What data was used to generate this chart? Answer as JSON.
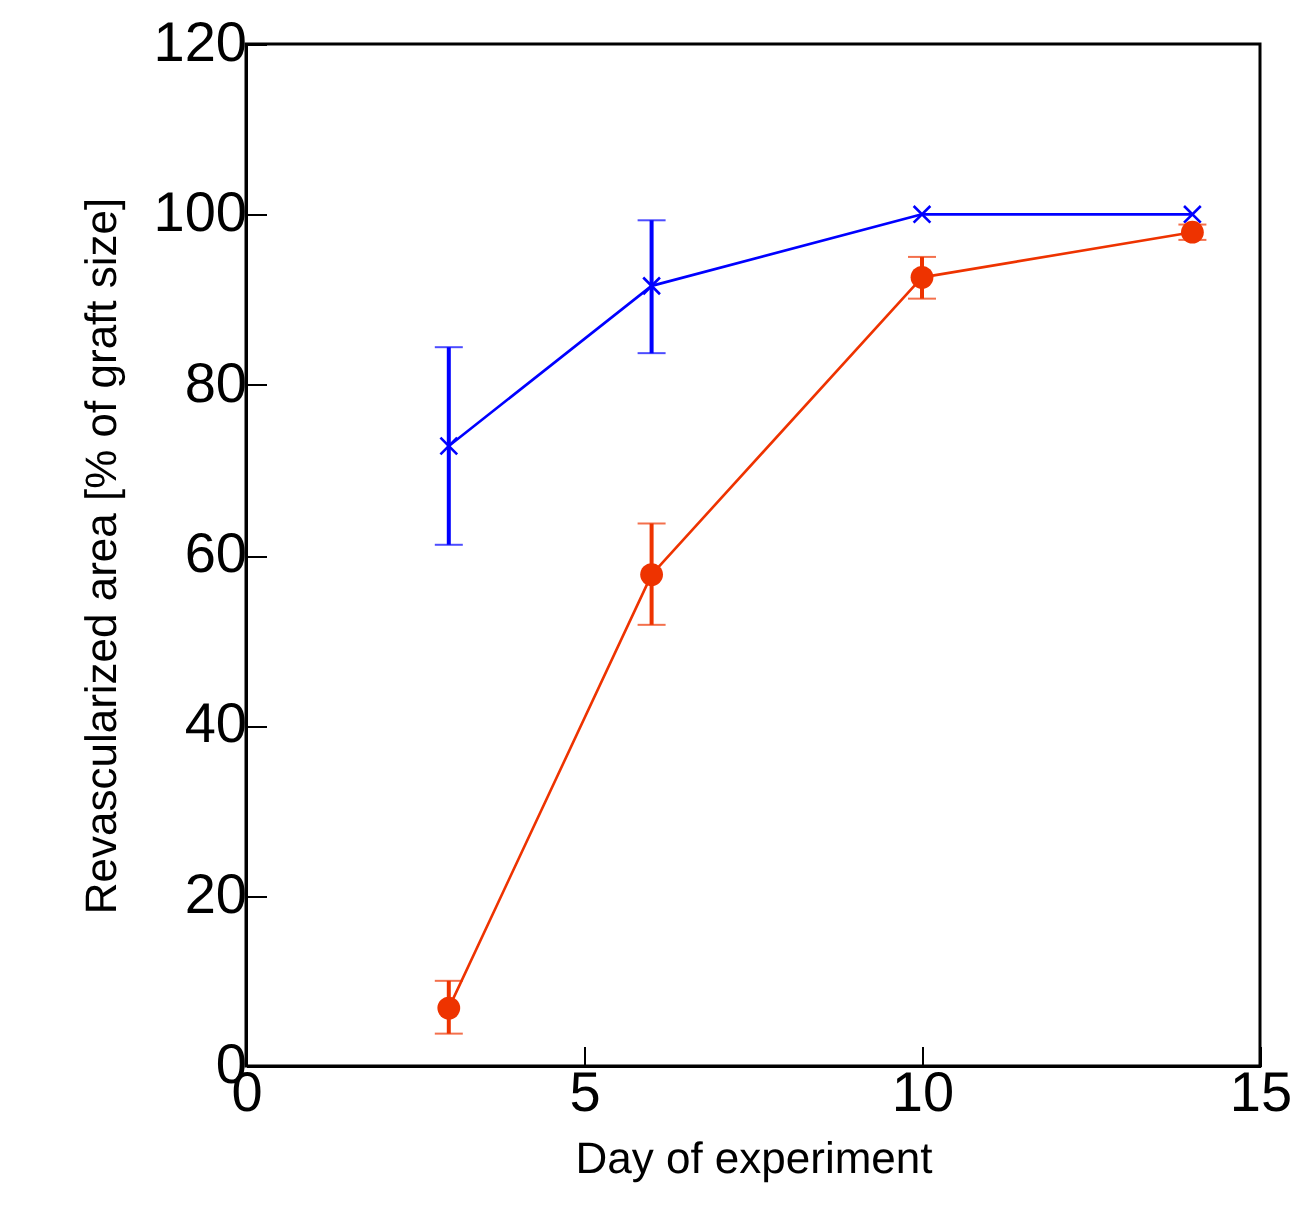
{
  "chart_data": {
    "type": "line",
    "xlabel": "Day of experiment",
    "ylabel": "Revascularized area [% of graft size]",
    "x": [
      3,
      6,
      10,
      14
    ],
    "series": [
      {
        "color": "#0000ff",
        "marker": "cross",
        "values": [
          72.8,
          91.6,
          100,
          100
        ],
        "errors": [
          [
            61.2,
            84.4
          ],
          [
            83.7,
            99.3
          ],
          null,
          null
        ]
      },
      {
        "color": "#ee3300",
        "marker": "circle",
        "values": [
          6.8,
          57.7,
          92.6,
          97.9
        ],
        "errors": [
          [
            3.8,
            10
          ],
          [
            51.8,
            63.7
          ],
          [
            90.1,
            95
          ],
          [
            97,
            98.8
          ]
        ]
      }
    ],
    "xlim": [
      0,
      15
    ],
    "xticks": [
      0,
      5,
      10,
      15
    ],
    "ylim": [
      0,
      120
    ],
    "yticks": [
      0,
      20,
      40,
      60,
      80,
      100,
      120
    ],
    "grid": false
  }
}
